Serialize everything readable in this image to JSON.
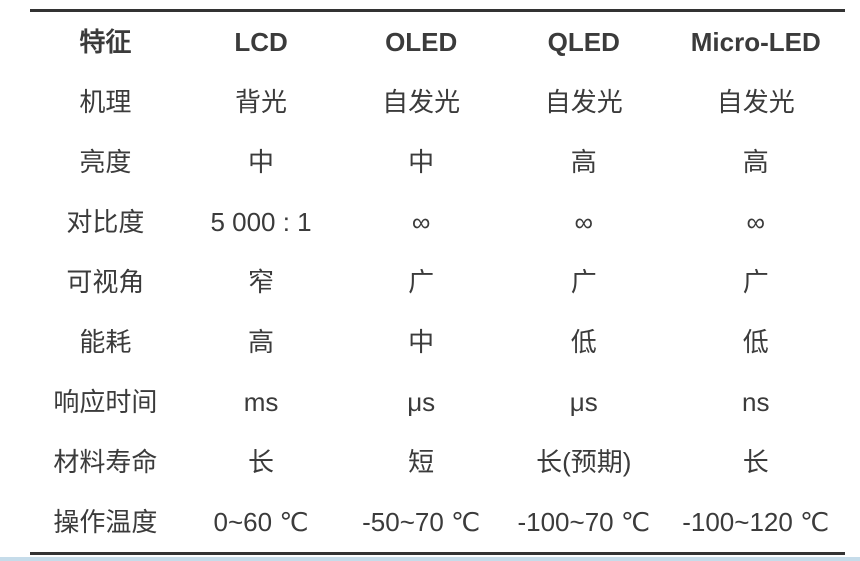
{
  "page": {
    "rule_color": "#333333",
    "text_color": "#3b3b3b",
    "bottom_strip_color": "#c6dcea"
  },
  "table": {
    "columns": [
      "特征",
      "LCD",
      "OLED",
      "QLED",
      "Micro-LED"
    ],
    "rows": [
      {
        "label": "机理",
        "values": [
          "背光",
          "自发光",
          "自发光",
          "自发光"
        ]
      },
      {
        "label": "亮度",
        "values": [
          "中",
          "中",
          "高",
          "高"
        ]
      },
      {
        "label": "对比度",
        "values": [
          "5 000 : 1",
          "∞",
          "∞",
          "∞"
        ]
      },
      {
        "label": "可视角",
        "values": [
          "窄",
          "广",
          "广",
          "广"
        ]
      },
      {
        "label": "能耗",
        "values": [
          "高",
          "中",
          "低",
          "低"
        ]
      },
      {
        "label": "响应时间",
        "values": [
          "ms",
          "μs",
          "μs",
          "ns"
        ]
      },
      {
        "label": "材料寿命",
        "values": [
          "长",
          "短",
          "长(预期)",
          "长"
        ]
      },
      {
        "label": "操作温度",
        "values": [
          "0~60 ℃",
          "-50~70 ℃",
          "-100~70 ℃",
          "-100~120 ℃"
        ]
      }
    ]
  }
}
